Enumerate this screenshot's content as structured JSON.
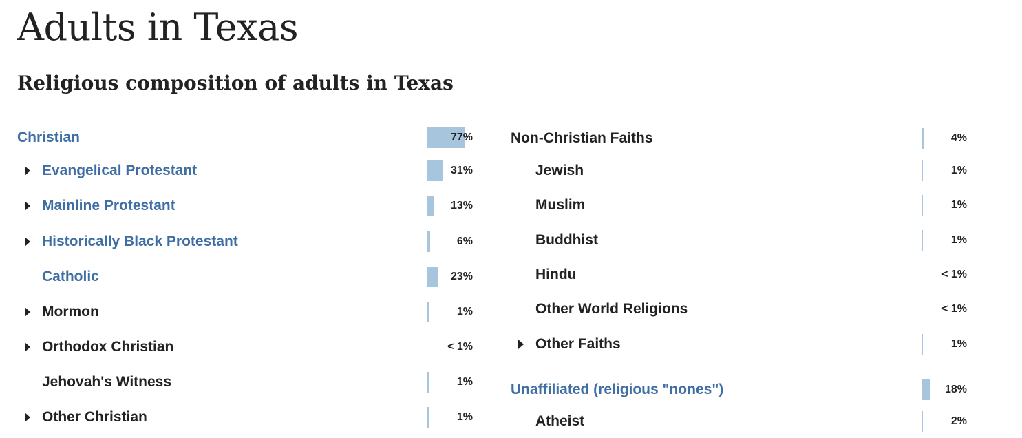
{
  "page_title": "Adults in Texas",
  "subtitle": "Religious composition of adults in Texas",
  "colors": {
    "blue_label": "#3f6ea5",
    "bar": "#a7c6de"
  },
  "left_column": [
    {
      "label": "Christian",
      "value": "77%",
      "pct": 77,
      "expandable": false,
      "blue": true,
      "indent": 0
    },
    {
      "label": "Evangelical Protestant",
      "value": "31%",
      "pct": 31,
      "expandable": true,
      "blue": true,
      "indent": 1
    },
    {
      "label": "Mainline Protestant",
      "value": "13%",
      "pct": 13,
      "expandable": true,
      "blue": true,
      "indent": 1
    },
    {
      "label": "Historically Black Protestant",
      "value": "6%",
      "pct": 6,
      "expandable": true,
      "blue": true,
      "indent": 1
    },
    {
      "label": "Catholic",
      "value": "23%",
      "pct": 23,
      "expandable": false,
      "blue": true,
      "indent": 1
    },
    {
      "label": "Mormon",
      "value": "1%",
      "pct": 1,
      "expandable": true,
      "blue": false,
      "indent": 1
    },
    {
      "label": "Orthodox Christian",
      "value": "< 1%",
      "pct": 0,
      "expandable": true,
      "blue": false,
      "indent": 1
    },
    {
      "label": "Jehovah's Witness",
      "value": "1%",
      "pct": 1,
      "expandable": false,
      "blue": false,
      "indent": 1
    },
    {
      "label": "Other Christian",
      "value": "1%",
      "pct": 1,
      "expandable": true,
      "blue": false,
      "indent": 1
    }
  ],
  "right_column": [
    {
      "label": "Non-Christian Faiths",
      "value": "4%",
      "pct": 4,
      "expandable": false,
      "blue": false,
      "indent": 0
    },
    {
      "label": "Jewish",
      "value": "1%",
      "pct": 1,
      "expandable": false,
      "blue": false,
      "indent": 1
    },
    {
      "label": "Muslim",
      "value": "1%",
      "pct": 1,
      "expandable": false,
      "blue": false,
      "indent": 1
    },
    {
      "label": "Buddhist",
      "value": "1%",
      "pct": 1,
      "expandable": false,
      "blue": false,
      "indent": 1
    },
    {
      "label": "Hindu",
      "value": "< 1%",
      "pct": 0,
      "expandable": false,
      "blue": false,
      "indent": 1
    },
    {
      "label": "Other World Religions",
      "value": "< 1%",
      "pct": 0,
      "expandable": false,
      "blue": false,
      "indent": 1
    },
    {
      "label": "Other Faiths",
      "value": "1%",
      "pct": 1,
      "expandable": true,
      "blue": false,
      "indent": 1
    },
    {
      "label": "Unaffiliated (religious \"nones\")",
      "value": "18%",
      "pct": 18,
      "expandable": false,
      "blue": true,
      "indent": 0
    },
    {
      "label": "Atheist",
      "value": "2%",
      "pct": 2,
      "expandable": false,
      "blue": false,
      "indent": 1
    }
  ]
}
